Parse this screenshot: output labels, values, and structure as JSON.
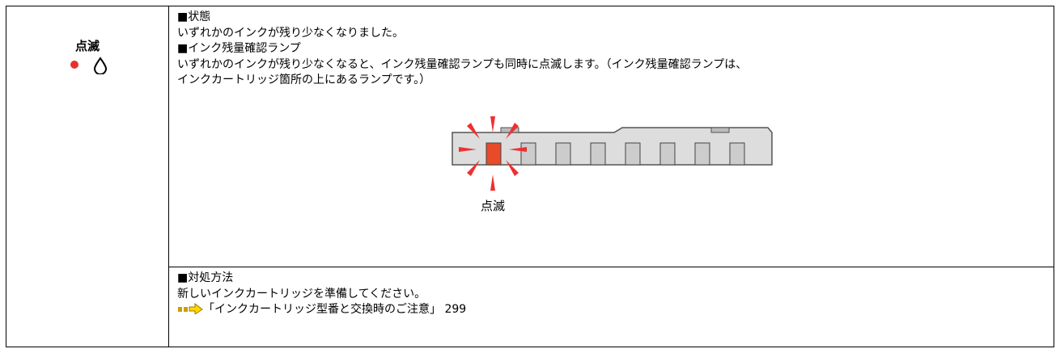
{
  "status_label": "点滅",
  "status": {
    "heading": "■状態",
    "text": "いずれかのインクが残り少なくなりました。"
  },
  "lamp": {
    "heading": "■インク残量確認ランプ",
    "lines": [
      "いずれかのインクが残り少なくなると、インク残量確認ランプも同時に点滅します。（インク残量確認ランプは、",
      "インクカートリッジ箇所の上にあるランプです。）"
    ],
    "figure_label": "点滅"
  },
  "remedy": {
    "heading": "■対処方法",
    "text": "新しいインクカートリッジを準備してください。",
    "link": "「インクカートリッジ型番と交換時のご注意」",
    "page": "299"
  }
}
